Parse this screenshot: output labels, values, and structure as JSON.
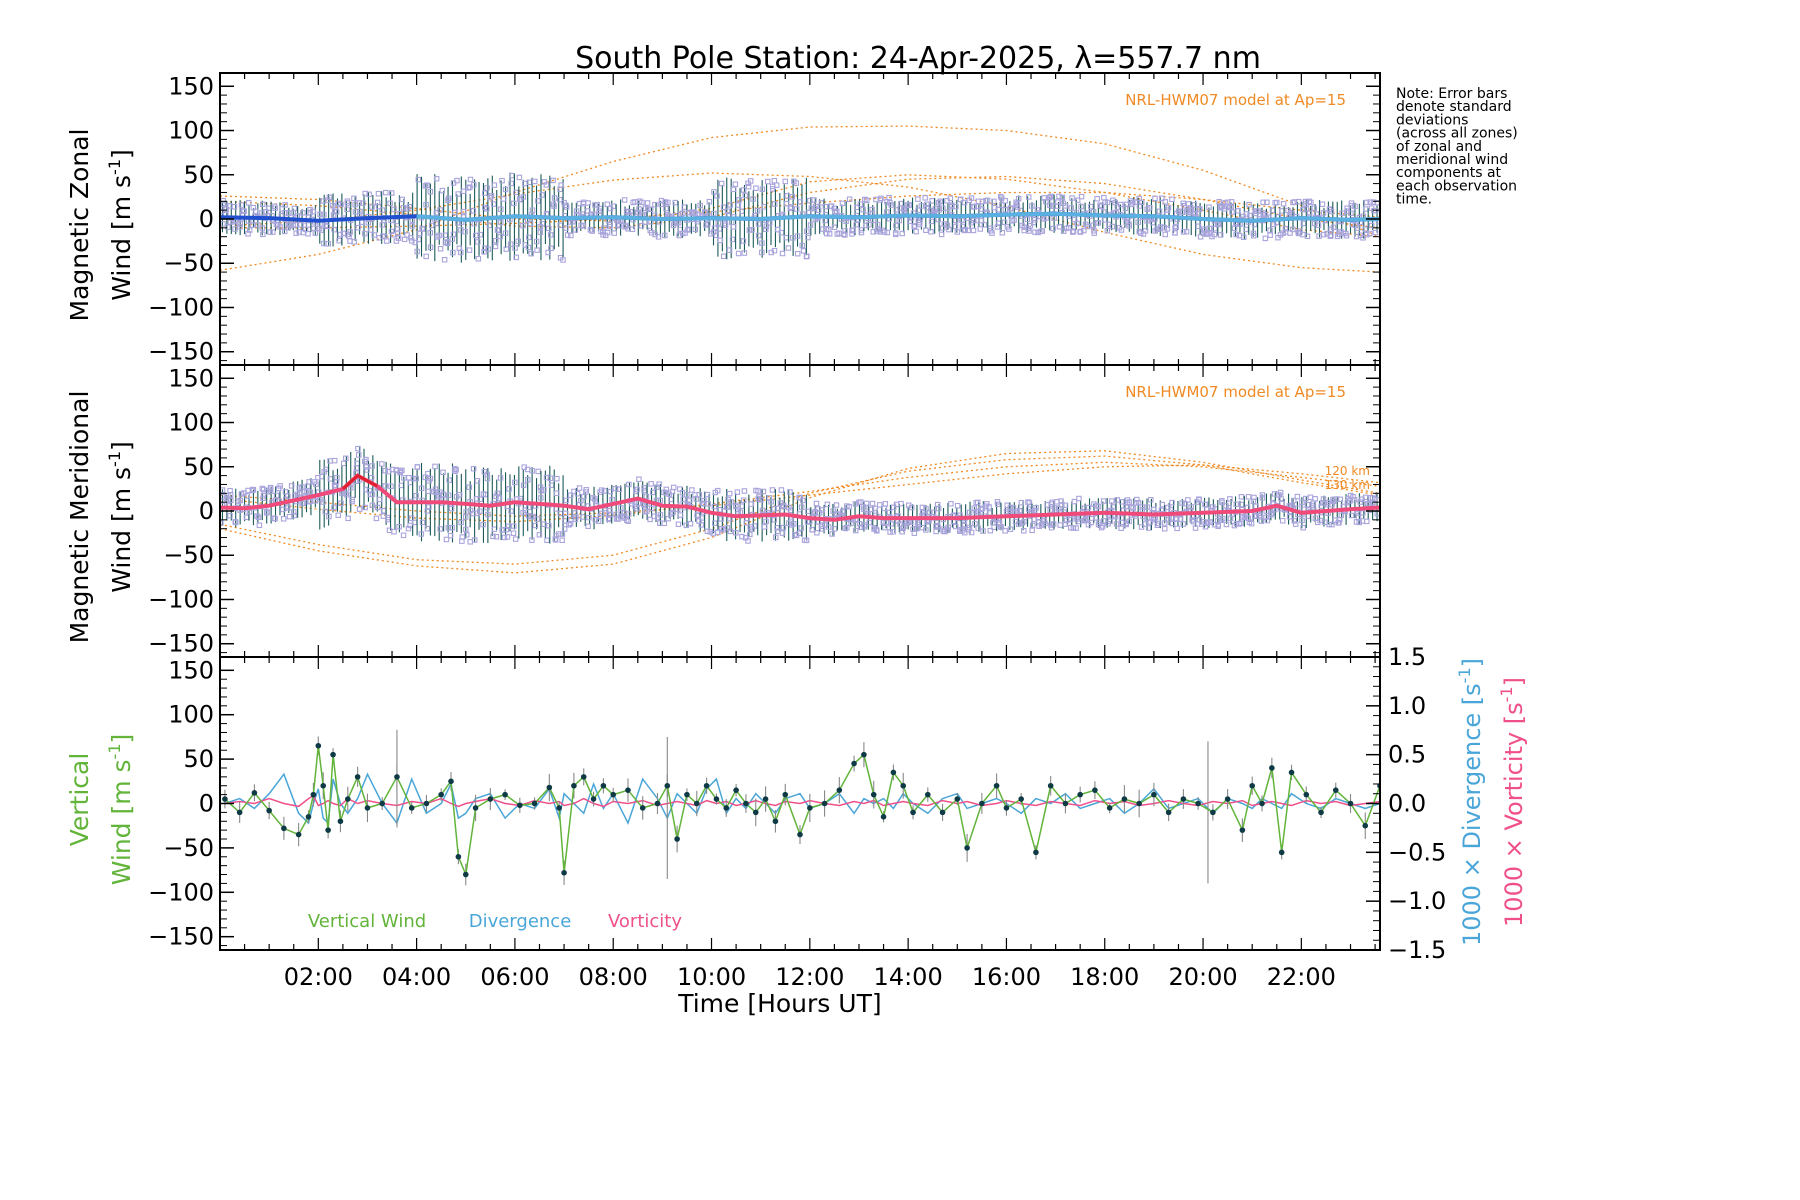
{
  "colors": {
    "model": "#f08a24",
    "zonal_mean": "#2050d0",
    "zonal_mean_light": "#5ab0e0",
    "meridional_mean": "#f04a7a",
    "meridional_peak": "#e02030",
    "scatter": "#a9a4dc",
    "errorbar": "#1a5a5a",
    "vertical": "#62b43a",
    "divergence": "#4aa6d8",
    "vorticity": "#f0508a",
    "point": "#0d3a44"
  },
  "chart_data": [
    {
      "type": "line",
      "panel": "zonal",
      "title": "South Pole Station: 24-Apr-2025, λ=557.7 nm",
      "ylabel": "Magnetic Zonal",
      "ylabel2": "Wind [m s",
      "ylabel_sup": "-1",
      "ylabel_end": "]",
      "ylim": [
        -165,
        165
      ],
      "xlim": [
        0,
        23.6
      ],
      "yticks": [
        150,
        100,
        50,
        0,
        -50,
        -100,
        -150
      ],
      "ytick_labels": [
        "150",
        "100",
        "50",
        "0",
        "−50",
        "−100",
        "−150"
      ],
      "model_label": "NRL-HWM07 model at Ap=15",
      "model_curves": [
        {
          "x": [
            0,
            2,
            4,
            6,
            8,
            10,
            12,
            14,
            16,
            18,
            20,
            22,
            23.6
          ],
          "y": [
            -58,
            -40,
            -12,
            30,
            65,
            92,
            104,
            105,
            100,
            85,
            55,
            15,
            -20
          ]
        },
        {
          "x": [
            0,
            2,
            4,
            6,
            8,
            10,
            12,
            14,
            16,
            18,
            20,
            22,
            23.6
          ],
          "y": [
            20,
            15,
            5,
            -8,
            -10,
            2,
            30,
            45,
            48,
            40,
            22,
            0,
            -10
          ]
        },
        {
          "x": [
            0,
            2,
            4,
            6,
            8,
            10,
            12,
            14,
            16,
            18,
            20,
            22,
            23.6
          ],
          "y": [
            26,
            22,
            12,
            0,
            -2,
            12,
            42,
            50,
            45,
            30,
            10,
            -12,
            -20
          ]
        },
        {
          "x": [
            0,
            2,
            4,
            6,
            8,
            10,
            12,
            14,
            16,
            18,
            20,
            22,
            23.6
          ],
          "y": [
            -8,
            -2,
            10,
            28,
            44,
            52,
            48,
            36,
            14,
            -15,
            -40,
            -55,
            -60
          ]
        },
        {
          "x": [
            0,
            2,
            4,
            6,
            8,
            10,
            12,
            14,
            16,
            18,
            20,
            22,
            23.6
          ],
          "y": [
            -10,
            -10,
            -8,
            -5,
            0,
            8,
            18,
            26,
            30,
            30,
            22,
            10,
            2
          ]
        }
      ],
      "mean_x": [
        0,
        1,
        2,
        3,
        4,
        5,
        6,
        7,
        8,
        9,
        10,
        11,
        12,
        13,
        14,
        15,
        16,
        17,
        18,
        19,
        20,
        21,
        22,
        23,
        23.6
      ],
      "mean_y": [
        2,
        1,
        -2,
        1,
        3,
        -1,
        3,
        1,
        2,
        0,
        1,
        0,
        3,
        2,
        4,
        3,
        5,
        6,
        4,
        3,
        0,
        -2,
        1,
        -1,
        0
      ],
      "spread": [
        {
          "t0": 0,
          "t1": 2,
          "a": 20
        },
        {
          "t0": 2,
          "t1": 4,
          "a": 30
        },
        {
          "t0": 4,
          "t1": 7,
          "a": 50
        },
        {
          "t0": 7,
          "t1": 10,
          "a": 22
        },
        {
          "t0": 10,
          "t1": 12,
          "a": 48
        },
        {
          "t0": 12,
          "t1": 23.6,
          "a": 22
        }
      ]
    },
    {
      "type": "line",
      "panel": "meridional",
      "ylabel": "Magnetic Meridional",
      "ylabel2": "Wind [m s",
      "ylabel_sup": "-1",
      "ylabel_end": "]",
      "ylim": [
        -165,
        165
      ],
      "xlim": [
        0,
        23.6
      ],
      "yticks": [
        150,
        100,
        50,
        0,
        -50,
        -100,
        -150
      ],
      "ytick_labels": [
        "150",
        "100",
        "50",
        "0",
        "−50",
        "−100",
        "−150"
      ],
      "model_label": "NRL-HWM07 model at Ap=15",
      "annotations": [
        "120 km",
        "130 km"
      ],
      "model_curves": [
        {
          "x": [
            0,
            2,
            4,
            6,
            8,
            10,
            12,
            14,
            16,
            18,
            20,
            22,
            23.6
          ],
          "y": [
            -20,
            -45,
            -62,
            -70,
            -60,
            -30,
            15,
            48,
            65,
            68,
            55,
            35,
            20
          ]
        },
        {
          "x": [
            0,
            2,
            4,
            6,
            8,
            10,
            12,
            14,
            16,
            18,
            20,
            22,
            23.6
          ],
          "y": [
            -15,
            -38,
            -55,
            -60,
            -50,
            -20,
            20,
            45,
            58,
            62,
            52,
            32,
            18
          ]
        },
        {
          "x": [
            0,
            2,
            4,
            6,
            8,
            10,
            12,
            14,
            16,
            18,
            20,
            22,
            23.6
          ],
          "y": [
            14,
            2,
            -8,
            -12,
            -5,
            8,
            22,
            38,
            50,
            55,
            50,
            38,
            28
          ]
        },
        {
          "x": [
            0,
            2,
            4,
            6,
            8,
            10,
            12,
            14,
            16,
            18,
            20,
            22,
            23.6
          ],
          "y": [
            18,
            10,
            0,
            -6,
            -2,
            6,
            18,
            30,
            42,
            50,
            52,
            42,
            32
          ]
        }
      ],
      "mean_x": [
        0,
        0.5,
        1,
        1.5,
        2,
        2.5,
        2.8,
        3.2,
        3.6,
        4,
        4.5,
        5,
        5.5,
        6,
        6.5,
        7,
        7.5,
        8,
        8.5,
        9,
        9.5,
        10,
        10.5,
        11,
        11.5,
        12,
        12.5,
        13,
        13.5,
        14,
        15,
        16,
        17,
        18,
        19,
        20,
        21,
        21.5,
        22,
        23,
        23.6
      ],
      "mean_y": [
        4,
        3,
        6,
        12,
        18,
        25,
        40,
        28,
        10,
        10,
        10,
        8,
        6,
        10,
        8,
        6,
        2,
        8,
        14,
        6,
        5,
        -2,
        -6,
        -5,
        -4,
        -8,
        -10,
        -6,
        -8,
        -8,
        -8,
        -6,
        -4,
        -2,
        -4,
        -2,
        0,
        6,
        -2,
        2,
        4
      ],
      "spread": [
        {
          "t0": 0,
          "t1": 2,
          "a": 22
        },
        {
          "t0": 2,
          "t1": 4,
          "a": 40
        },
        {
          "t0": 4,
          "t1": 7,
          "a": 45
        },
        {
          "t0": 7,
          "t1": 10,
          "a": 25
        },
        {
          "t0": 10,
          "t1": 12,
          "a": 30
        },
        {
          "t0": 12,
          "t1": 23.6,
          "a": 18
        }
      ]
    },
    {
      "type": "line",
      "panel": "vertical",
      "ylabel_parts": [
        "Vertical",
        "Wind [m s",
        "-1",
        "]"
      ],
      "xlabel": "Time [Hours UT]",
      "ylim": [
        -165,
        165
      ],
      "xlim": [
        0,
        23.6
      ],
      "yticks": [
        150,
        100,
        50,
        0,
        -50,
        -100,
        -150
      ],
      "ytick_labels": [
        "150",
        "100",
        "50",
        "0",
        "−50",
        "−100",
        "−150"
      ],
      "y2lim": [
        -1.5,
        1.5
      ],
      "y2ticks": [
        1.5,
        1.0,
        0.5,
        0.0,
        -0.5,
        -1.0,
        -1.5
      ],
      "y2tick_labels": [
        "1.5",
        "1.0",
        "0.5",
        "0.0",
        "−0.5",
        "−1.0",
        "−1.5"
      ],
      "y2label_div": [
        "1000 × Divergence [s",
        "-1",
        "]"
      ],
      "y2label_vor": [
        "1000 × Vorticity [s",
        "-1",
        "]"
      ],
      "xticks": [
        2,
        4,
        6,
        8,
        10,
        12,
        14,
        16,
        18,
        20,
        22
      ],
      "xtick_labels": [
        "02:00",
        "04:00",
        "06:00",
        "08:00",
        "10:00",
        "12:00",
        "14:00",
        "16:00",
        "18:00",
        "20:00",
        "22:00"
      ],
      "legend": [
        "Vertical Wind",
        "Divergence",
        "Vorticity"
      ],
      "vertical_x": [
        0.1,
        0.4,
        0.7,
        1.0,
        1.3,
        1.6,
        1.8,
        1.9,
        2.0,
        2.1,
        2.2,
        2.3,
        2.45,
        2.6,
        2.8,
        3.0,
        3.3,
        3.6,
        3.9,
        4.2,
        4.5,
        4.7,
        4.85,
        5.0,
        5.2,
        5.5,
        5.8,
        6.1,
        6.4,
        6.7,
        6.9,
        7.0,
        7.2,
        7.4,
        7.6,
        7.8,
        8.0,
        8.3,
        8.6,
        8.9,
        9.1,
        9.3,
        9.5,
        9.7,
        9.9,
        10.1,
        10.3,
        10.5,
        10.7,
        10.9,
        11.1,
        11.3,
        11.5,
        11.8,
        12.0,
        12.3,
        12.6,
        12.9,
        13.1,
        13.3,
        13.5,
        13.7,
        13.9,
        14.1,
        14.4,
        14.7,
        15.0,
        15.2,
        15.5,
        15.8,
        16.0,
        16.3,
        16.6,
        16.9,
        17.2,
        17.5,
        17.8,
        18.1,
        18.4,
        18.7,
        19.0,
        19.3,
        19.6,
        19.9,
        20.2,
        20.5,
        20.8,
        21.0,
        21.2,
        21.4,
        21.6,
        21.8,
        22.1,
        22.4,
        22.7,
        23.0,
        23.3,
        23.6
      ],
      "vertical_y": [
        5,
        -10,
        12,
        -8,
        -28,
        -35,
        -15,
        10,
        65,
        20,
        -30,
        55,
        -20,
        5,
        30,
        -5,
        0,
        30,
        -5,
        0,
        10,
        25,
        -60,
        -80,
        -5,
        5,
        10,
        -2,
        0,
        18,
        -5,
        -78,
        20,
        30,
        5,
        20,
        10,
        15,
        -5,
        0,
        20,
        -40,
        10,
        0,
        20,
        5,
        -5,
        15,
        0,
        -10,
        5,
        -20,
        10,
        -35,
        -5,
        0,
        15,
        45,
        55,
        10,
        -15,
        35,
        20,
        -10,
        10,
        -10,
        5,
        -50,
        0,
        20,
        -5,
        5,
        -55,
        20,
        0,
        10,
        15,
        -5,
        5,
        0,
        10,
        -10,
        5,
        0,
        -10,
        5,
        -30,
        20,
        0,
        40,
        -55,
        35,
        10,
        -10,
        15,
        0,
        -25,
        20
      ],
      "divergence": [
        0.0,
        0.05,
        -0.05,
        0.1,
        0.3,
        -0.1,
        -0.2,
        0.0,
        0.15,
        -0.15,
        -0.2,
        0.25,
        0.0,
        -0.1,
        0.05,
        0.3,
        0.0,
        -0.2,
        0.25,
        -0.1,
        0.0,
        0.2,
        -0.15,
        -0.1,
        0.05,
        0.1,
        -0.15,
        0.0,
        -0.05,
        0.15,
        -0.15,
        0.1,
        0.0,
        -0.1,
        0.2,
        -0.05,
        0.1,
        -0.2,
        0.25,
        0.05,
        -0.15,
        0.1,
        0.0,
        -0.1,
        0.15,
        0.25,
        -0.1,
        0.05,
        -0.05,
        0.1,
        0.0,
        -0.1,
        0.05,
        0.1,
        -0.05,
        0.0,
        0.1,
        -0.1,
        0.05,
        0.0,
        0.05,
        -0.05,
        0.1,
        0.0,
        -0.1,
        0.05,
        0.1,
        -0.05,
        0.0,
        0.05,
        0.0,
        -0.1,
        0.05,
        0.0,
        0.1,
        -0.05,
        0.0,
        0.05,
        -0.1,
        0.0,
        0.15,
        -0.05,
        0.0,
        0.05,
        -0.1,
        0.05,
        0.0,
        -0.05,
        0.05,
        0.0,
        -0.05,
        0.1,
        0.0,
        -0.05,
        0.05,
        0.0,
        -0.05,
        0.0
      ],
      "vorticity": [
        0.0,
        0.02,
        0.0,
        0.05,
        0.0,
        -0.03,
        0.05,
        0.08,
        -0.02,
        0.0,
        0.03,
        0.0,
        -0.02,
        0.05,
        0.0,
        0.03,
        0.0,
        -0.02,
        0.02,
        0.0,
        0.05,
        0.0,
        -0.03,
        0.0,
        0.02,
        0.05,
        0.0,
        -0.02,
        0.03,
        0.0,
        0.02,
        -0.02,
        0.0,
        0.05,
        0.0,
        -0.03,
        0.02,
        0.0,
        0.03,
        -0.02,
        0.0,
        0.02,
        0.0,
        -0.02,
        0.03,
        0.0,
        0.02,
        -0.02,
        0.0,
        0.03,
        0.0,
        -0.02,
        0.02,
        0.0,
        0.03,
        0.0,
        -0.02,
        0.02,
        0.0,
        0.03,
        -0.02,
        0.0,
        0.02,
        0.0,
        -0.02,
        0.03,
        0.0,
        0.02,
        -0.02,
        0.0,
        0.03,
        0.0,
        -0.02,
        0.02,
        0.0,
        -0.02,
        0.03,
        0.0,
        0.02,
        -0.02,
        0.0,
        0.03,
        0.0,
        -0.02,
        0.02,
        0.0,
        0.03,
        -0.02,
        0.0,
        0.02,
        0.0,
        -0.02,
        0.03,
        0.0,
        0.02,
        -0.02,
        0.0,
        0.02
      ]
    }
  ],
  "note": [
    "Note: Error bars",
    "denote standard",
    "deviations",
    "(across all zones)",
    "of zonal and",
    "meridional wind",
    "components at",
    "each observation",
    "time."
  ]
}
